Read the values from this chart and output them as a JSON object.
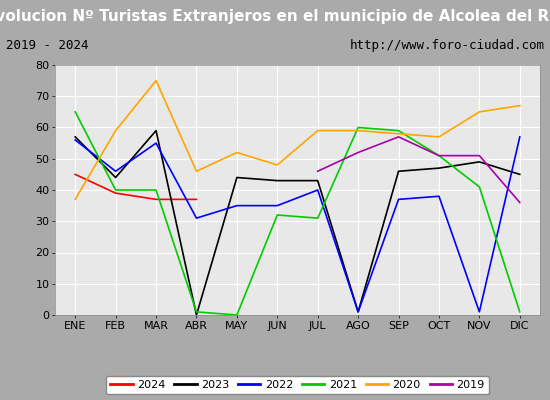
{
  "title": "Evolucion Nº Turistas Extranjeros en el municipio de Alcolea del Río",
  "subtitle_left": "2019 - 2024",
  "subtitle_right": "http://www.foro-ciudad.com",
  "months": [
    "ENE",
    "FEB",
    "MAR",
    "ABR",
    "MAY",
    "JUN",
    "JUL",
    "AGO",
    "SEP",
    "OCT",
    "NOV",
    "DIC"
  ],
  "series": {
    "2024": {
      "color": "#ff0000",
      "data": [
        45,
        39,
        37,
        37,
        null,
        null,
        null,
        null,
        null,
        null,
        null,
        null
      ]
    },
    "2023": {
      "color": "#000000",
      "data": [
        57,
        44,
        59,
        0,
        44,
        43,
        43,
        1,
        46,
        47,
        49,
        45
      ]
    },
    "2022": {
      "color": "#0000ff",
      "data": [
        56,
        46,
        55,
        31,
        35,
        35,
        40,
        1,
        37,
        38,
        1,
        57
      ]
    },
    "2021": {
      "color": "#00cc00",
      "data": [
        65,
        40,
        40,
        1,
        0,
        32,
        31,
        60,
        59,
        51,
        41,
        1
      ]
    },
    "2020": {
      "color": "#ffa500",
      "data": [
        37,
        59,
        75,
        46,
        52,
        48,
        59,
        59,
        58,
        57,
        65,
        67
      ]
    },
    "2019": {
      "color": "#aa00aa",
      "data": [
        null,
        null,
        null,
        null,
        null,
        null,
        46,
        52,
        57,
        51,
        51,
        36
      ]
    }
  },
  "ylim": [
    0,
    80
  ],
  "yticks": [
    0,
    10,
    20,
    30,
    40,
    50,
    60,
    70,
    80
  ],
  "legend_order": [
    "2024",
    "2023",
    "2022",
    "2021",
    "2020",
    "2019"
  ],
  "title_bg": "#5599dd",
  "subtitle_bg": "#f0f0f0",
  "plot_bg": "#e8e8e8",
  "fig_bg": "#aaaaaa",
  "grid_color": "#ffffff",
  "title_fontsize": 11,
  "subtitle_fontsize": 9,
  "axis_fontsize": 8,
  "legend_fontsize": 8
}
